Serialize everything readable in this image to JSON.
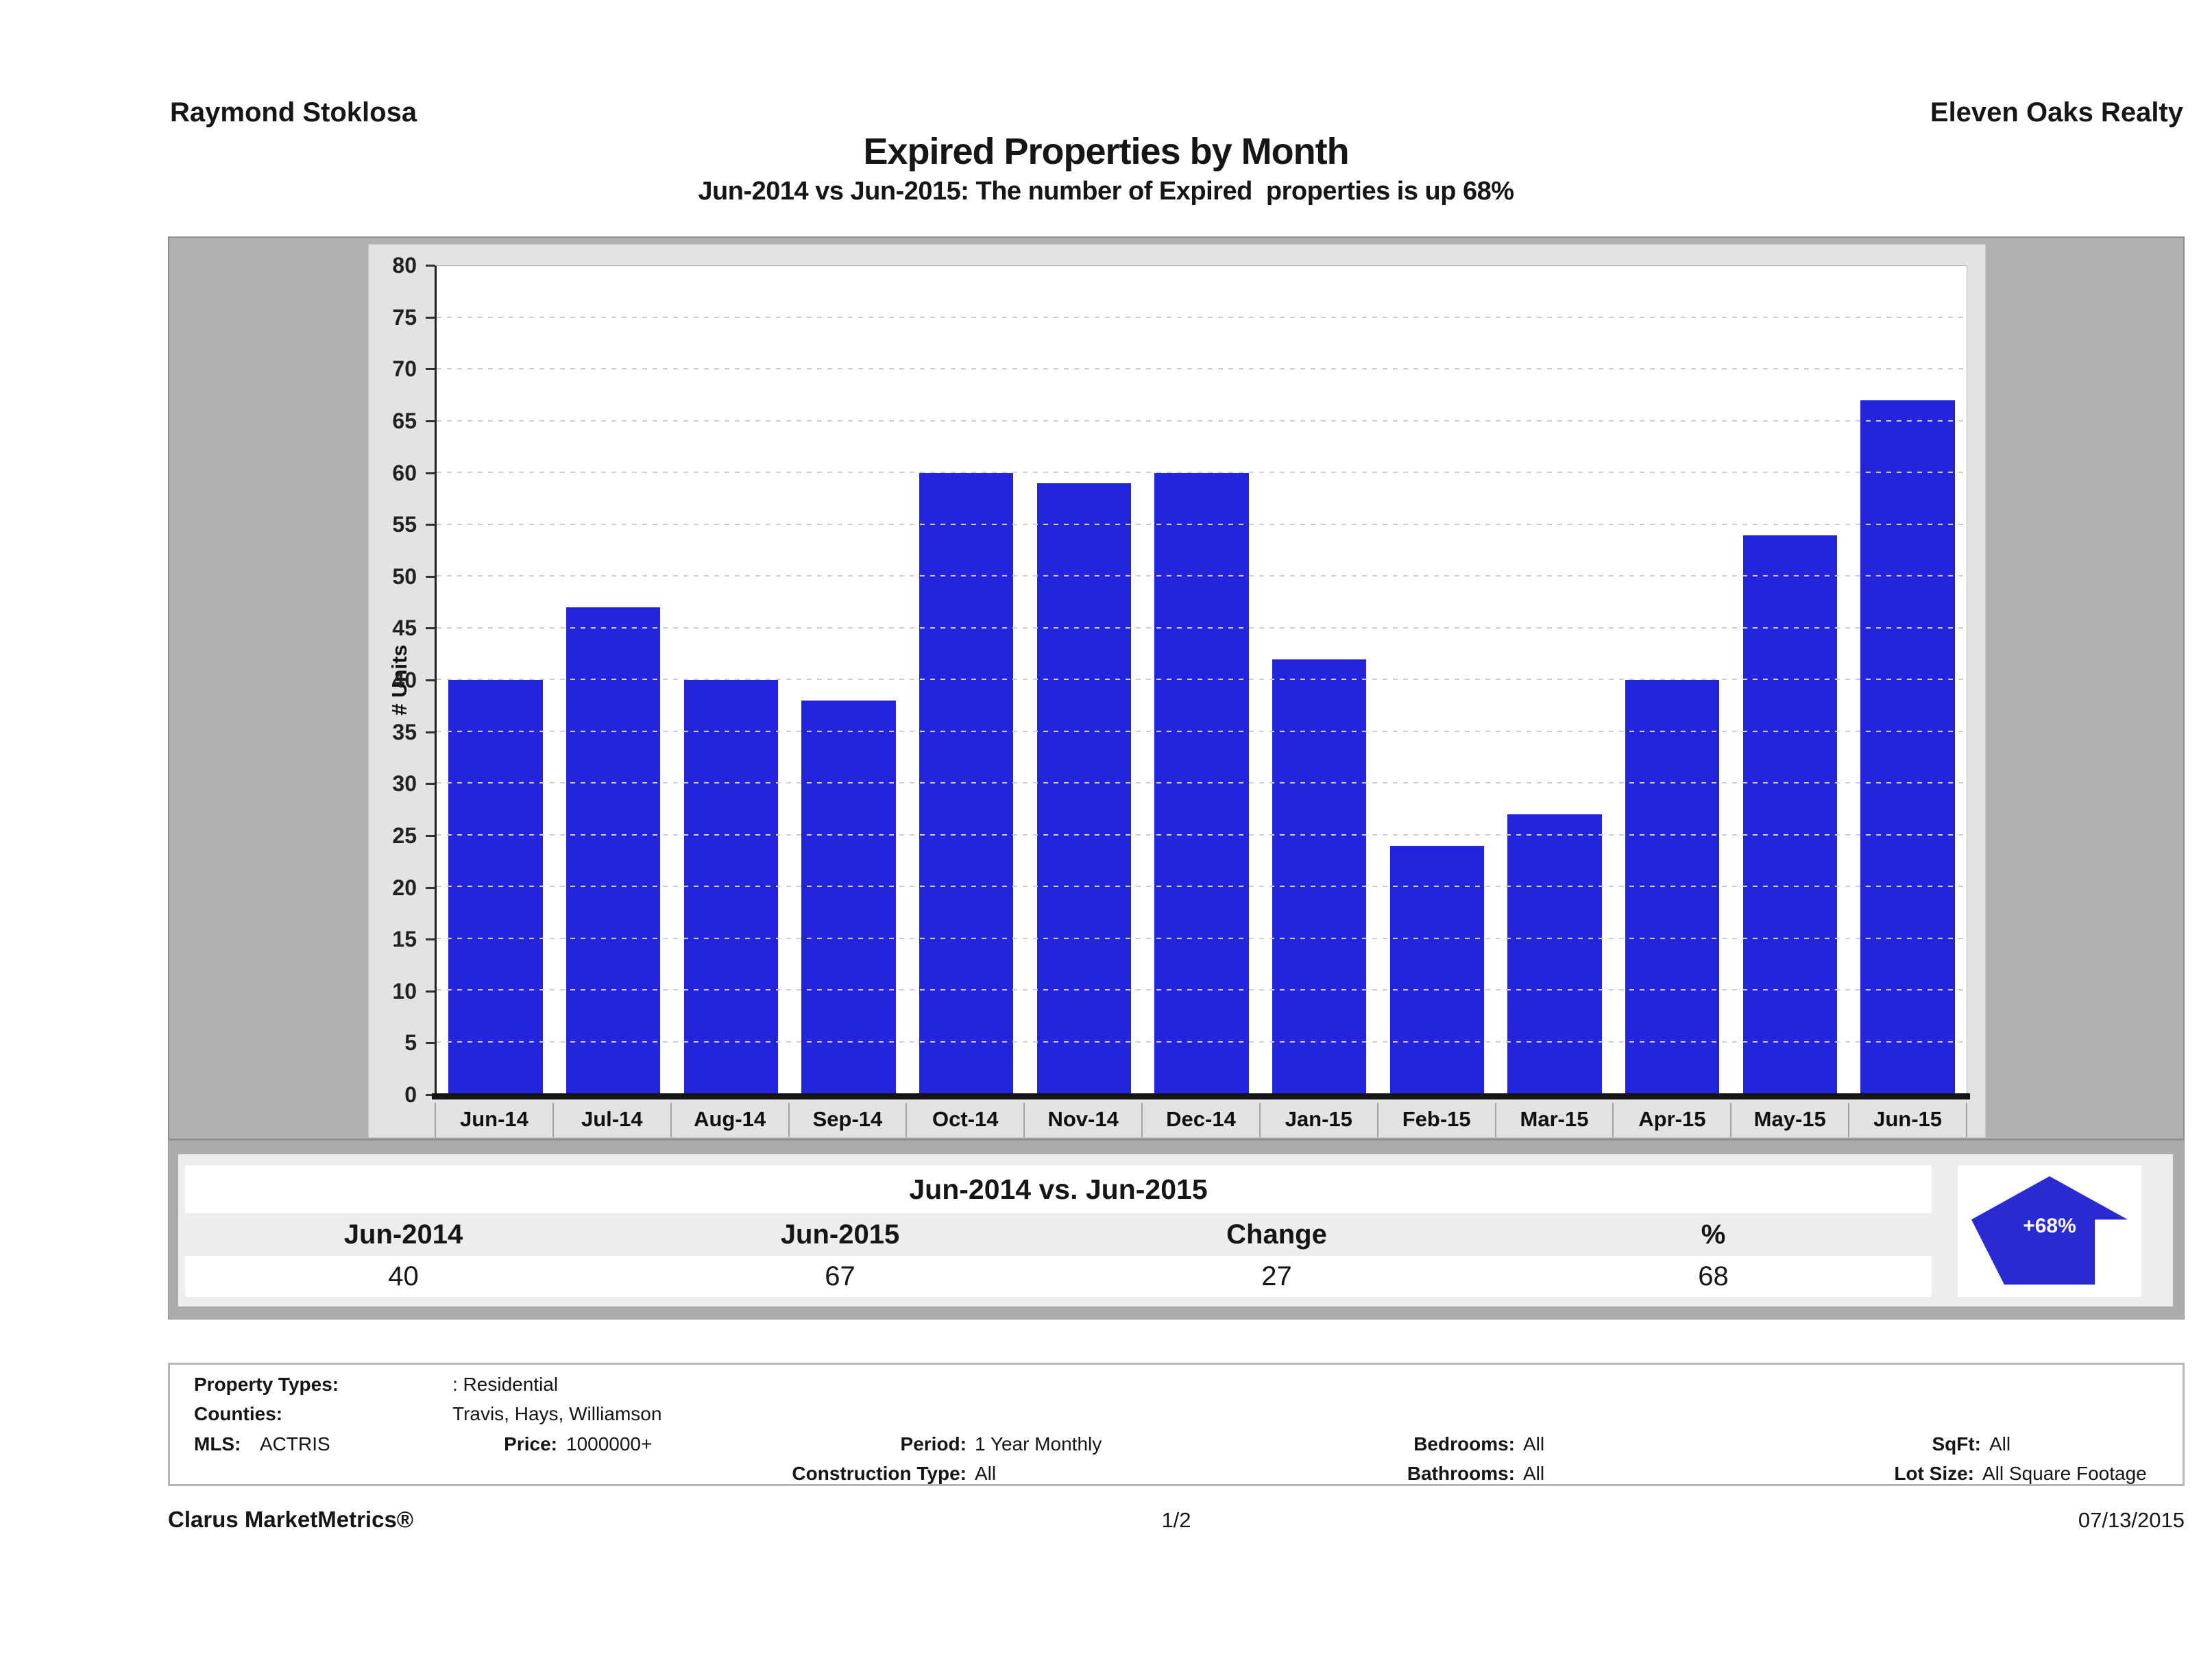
{
  "header": {
    "agent_name": "Raymond Stoklosa",
    "company_name": "Eleven Oaks Realty",
    "title": "Expired Properties by Month",
    "subtitle": "Jun-2014 vs Jun-2015: The number of Expired  properties is up 68%"
  },
  "chart_data": {
    "type": "bar",
    "title": "Expired Properties by Month",
    "categories": [
      "Jun-14",
      "Jul-14",
      "Aug-14",
      "Sep-14",
      "Oct-14",
      "Nov-14",
      "Dec-14",
      "Jan-15",
      "Feb-15",
      "Mar-15",
      "Apr-15",
      "May-15",
      "Jun-15"
    ],
    "values": [
      40,
      47,
      40,
      38,
      60,
      59,
      60,
      42,
      24,
      27,
      40,
      54,
      67
    ],
    "xlabel": "",
    "ylabel": "# Units",
    "ylim": [
      0,
      80
    ],
    "ytick_step": 5,
    "grid": true,
    "legend_position": "none",
    "bar_color": "#2424dc"
  },
  "summary": {
    "title": "Jun-2014 vs. Jun-2015",
    "columns": [
      "Jun-2014",
      "Jun-2015",
      "Change",
      "%"
    ],
    "values": [
      "40",
      "67",
      "27",
      "68"
    ],
    "arrow_label": "+68%",
    "arrow_color": "#2a2ad2"
  },
  "filters": {
    "property_types_label": "Property Types:",
    "property_types": ": Residential",
    "counties_label": "Counties:",
    "counties": "Travis, Hays, Williamson",
    "mls_label": "MLS:",
    "mls": "ACTRIS",
    "price_label": "Price:",
    "price": "1000000+",
    "period_label": "Period:",
    "period": "1 Year Monthly",
    "bedrooms_label": "Bedrooms:",
    "bedrooms": "All",
    "sqft_label": "SqFt:",
    "sqft": "All",
    "construction_label": "Construction Type:",
    "construction": "All",
    "bathrooms_label": "Bathrooms:",
    "bathrooms": "All",
    "lot_size_label": "Lot Size:",
    "lot_size": "All Square Footage"
  },
  "page_footer": {
    "brand": "Clarus MarketMetrics®",
    "page": "1/2",
    "date": "07/13/2015"
  }
}
